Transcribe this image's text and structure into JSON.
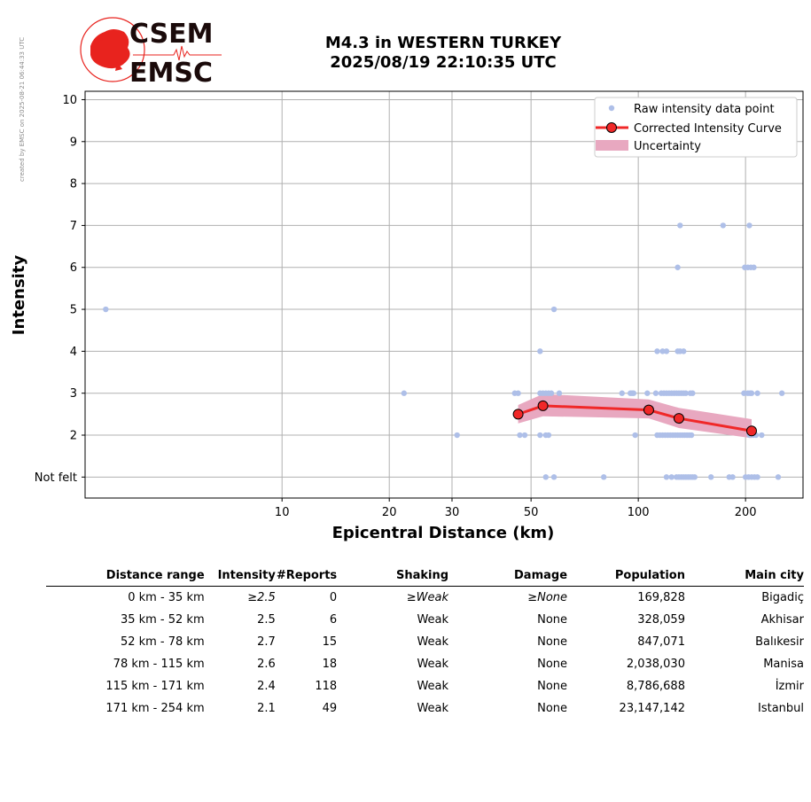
{
  "stamp": "created by EMSC on 2025-08-21 06:44:33 UTC",
  "logo": {
    "line1": "CSEM",
    "line2": "EMSC",
    "accent": "#e8231e"
  },
  "title": {
    "line1": "M4.3 in WESTERN TURKEY",
    "line2": "2025/08/19 22:10:35 UTC"
  },
  "chart_data": {
    "type": "scatter",
    "xlabel": "Epicentral Distance (km)",
    "ylabel": "Intensity",
    "xscale": "log",
    "xlim": [
      2.8,
      290
    ],
    "ylim": [
      0.5,
      10.2
    ],
    "x_ticks": [
      10,
      20,
      30,
      50,
      100,
      200
    ],
    "y_ticks": [
      {
        "v": 1,
        "label": "Not felt"
      },
      {
        "v": 2,
        "label": "2"
      },
      {
        "v": 3,
        "label": "3"
      },
      {
        "v": 4,
        "label": "4"
      },
      {
        "v": 5,
        "label": "5"
      },
      {
        "v": 6,
        "label": "6"
      },
      {
        "v": 7,
        "label": "7"
      },
      {
        "v": 8,
        "label": "8"
      },
      {
        "v": 9,
        "label": "9"
      },
      {
        "v": 10,
        "label": "10"
      }
    ],
    "grid": true,
    "legend_position": "top-right",
    "legend": [
      "Raw intensity data point",
      "Corrected Intensity Curve",
      "Uncertainty"
    ],
    "colors": {
      "raw": "#aebfe8",
      "curve": "#f02828",
      "marker": "#f02828",
      "band": "#e8a8c0"
    },
    "raw_points": [
      [
        3.2,
        5
      ],
      [
        22,
        3
      ],
      [
        31,
        2
      ],
      [
        45,
        3
      ],
      [
        46,
        3
      ],
      [
        53,
        4
      ],
      [
        58,
        5
      ],
      [
        53,
        3
      ],
      [
        54,
        3
      ],
      [
        55,
        3
      ],
      [
        56,
        3
      ],
      [
        57,
        3
      ],
      [
        60,
        3
      ],
      [
        46.5,
        2
      ],
      [
        48,
        2
      ],
      [
        53,
        2
      ],
      [
        55,
        2
      ],
      [
        56,
        2
      ],
      [
        55,
        1
      ],
      [
        58,
        1
      ],
      [
        80,
        1
      ],
      [
        90,
        3
      ],
      [
        95,
        3
      ],
      [
        96,
        3
      ],
      [
        97,
        3
      ],
      [
        98,
        2
      ],
      [
        106,
        3
      ],
      [
        113,
        4
      ],
      [
        117,
        4
      ],
      [
        120,
        4
      ],
      [
        129,
        4
      ],
      [
        131,
        4
      ],
      [
        134,
        4
      ],
      [
        112,
        3
      ],
      [
        116,
        3
      ],
      [
        118,
        3
      ],
      [
        120,
        3
      ],
      [
        122,
        3
      ],
      [
        124,
        3
      ],
      [
        126,
        3
      ],
      [
        128,
        3
      ],
      [
        130,
        3
      ],
      [
        132,
        3
      ],
      [
        134,
        3
      ],
      [
        136,
        3
      ],
      [
        140,
        3
      ],
      [
        142,
        3
      ],
      [
        113,
        2
      ],
      [
        115,
        2
      ],
      [
        117,
        2
      ],
      [
        119,
        2
      ],
      [
        121,
        2
      ],
      [
        123,
        2
      ],
      [
        125,
        2
      ],
      [
        127,
        2
      ],
      [
        129,
        2
      ],
      [
        131,
        2
      ],
      [
        133,
        2
      ],
      [
        135,
        2
      ],
      [
        137,
        2
      ],
      [
        139,
        2
      ],
      [
        141,
        2
      ],
      [
        120,
        1
      ],
      [
        124,
        1
      ],
      [
        128,
        1
      ],
      [
        130,
        1
      ],
      [
        132,
        1
      ],
      [
        134,
        1
      ],
      [
        136,
        1
      ],
      [
        138,
        1
      ],
      [
        140,
        1
      ],
      [
        142,
        1
      ],
      [
        144,
        1
      ],
      [
        160,
        1
      ],
      [
        180,
        1
      ],
      [
        184,
        1
      ],
      [
        131,
        7
      ],
      [
        173,
        7
      ],
      [
        205,
        7
      ],
      [
        129,
        6
      ],
      [
        199,
        6
      ],
      [
        203,
        6
      ],
      [
        207,
        6
      ],
      [
        211,
        6
      ],
      [
        198,
        3
      ],
      [
        203,
        3
      ],
      [
        206,
        3
      ],
      [
        208,
        3
      ],
      [
        216,
        3
      ],
      [
        253,
        3
      ],
      [
        205,
        2
      ],
      [
        210,
        2
      ],
      [
        214,
        2
      ],
      [
        222,
        2
      ],
      [
        200,
        1
      ],
      [
        204,
        1
      ],
      [
        208,
        1
      ],
      [
        212,
        1
      ],
      [
        216,
        1
      ],
      [
        247,
        1
      ]
    ],
    "curve": [
      {
        "x": 46,
        "y": 2.5
      },
      {
        "x": 54,
        "y": 2.7
      },
      {
        "x": 107,
        "y": 2.6
      },
      {
        "x": 130,
        "y": 2.4
      },
      {
        "x": 208,
        "y": 2.1
      }
    ],
    "band": [
      {
        "x": 46,
        "lo": 2.28,
        "hi": 2.72
      },
      {
        "x": 54,
        "lo": 2.45,
        "hi": 2.98
      },
      {
        "x": 107,
        "lo": 2.4,
        "hi": 2.85
      },
      {
        "x": 130,
        "lo": 2.17,
        "hi": 2.65
      },
      {
        "x": 208,
        "lo": 1.93,
        "hi": 2.38
      }
    ]
  },
  "table": {
    "headers": [
      "Distance range",
      "Intensity",
      "#Reports",
      "Shaking",
      "Damage",
      "Population",
      "Main city"
    ],
    "rows": [
      [
        "0 km -   35 km",
        "≥2.5",
        "0",
        "≥Weak",
        "≥None",
        "169,828",
        "Bigadiç"
      ],
      [
        "35 km -   52 km",
        "2.5",
        "6",
        "Weak",
        "None",
        "328,059",
        "Akhisar"
      ],
      [
        "52 km -   78 km",
        "2.7",
        "15",
        "Weak",
        "None",
        "847,071",
        "Balıkesir"
      ],
      [
        "78 km -  115 km",
        "2.6",
        "18",
        "Weak",
        "None",
        "2,038,030",
        "Manisa"
      ],
      [
        "115 km -  171 km",
        "2.4",
        "118",
        "Weak",
        "None",
        "8,786,688",
        "İzmir"
      ],
      [
        "171 km -  254 km",
        "2.1",
        "49",
        "Weak",
        "None",
        "23,147,142",
        "Istanbul"
      ]
    ]
  }
}
